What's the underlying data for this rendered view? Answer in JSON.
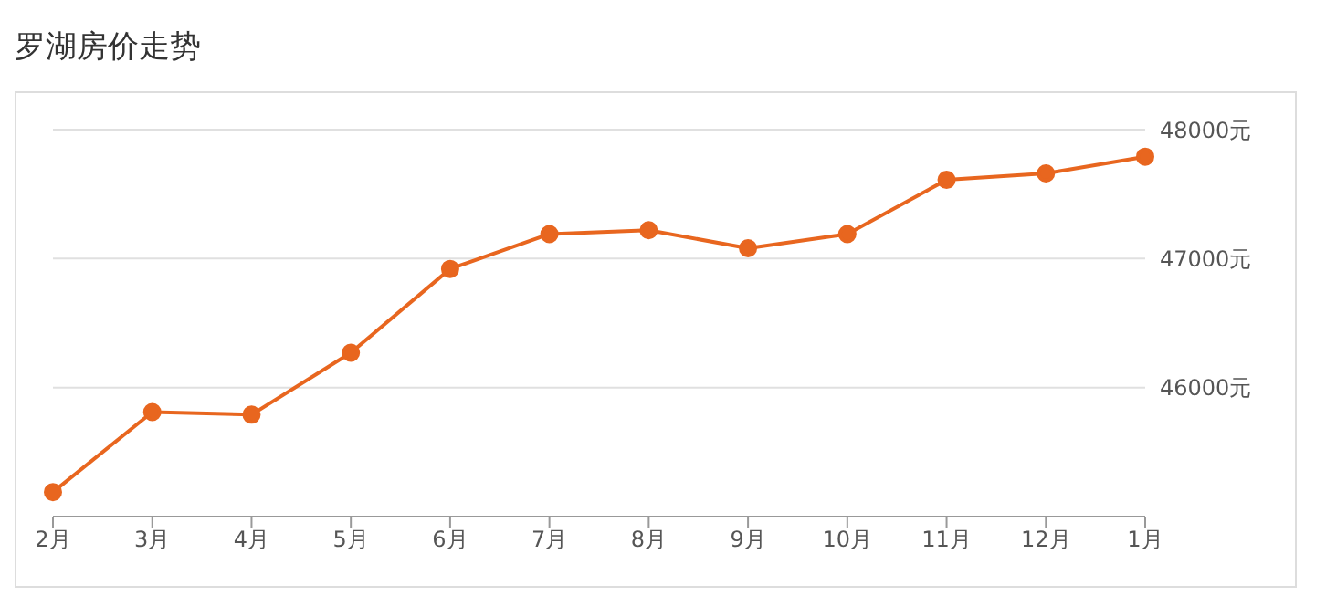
{
  "chart_data": {
    "type": "line",
    "title": "罗湖房价走势",
    "categories": [
      "2月",
      "3月",
      "4月",
      "5月",
      "6月",
      "7月",
      "8月",
      "9月",
      "10月",
      "11月",
      "12月",
      "1月"
    ],
    "values": [
      45190,
      45810,
      45790,
      46270,
      46920,
      47190,
      47220,
      47080,
      47190,
      47610,
      47660,
      47790
    ],
    "color": "#e8661f",
    "marker": "circle",
    "line_style": "solid",
    "grid": "y",
    "ylim": [
      45000,
      48000
    ],
    "yticks": [
      {
        "value": 46000,
        "label": "46000元"
      },
      {
        "value": 47000,
        "label": "47000元"
      },
      {
        "value": 48000,
        "label": "48000元"
      }
    ]
  }
}
